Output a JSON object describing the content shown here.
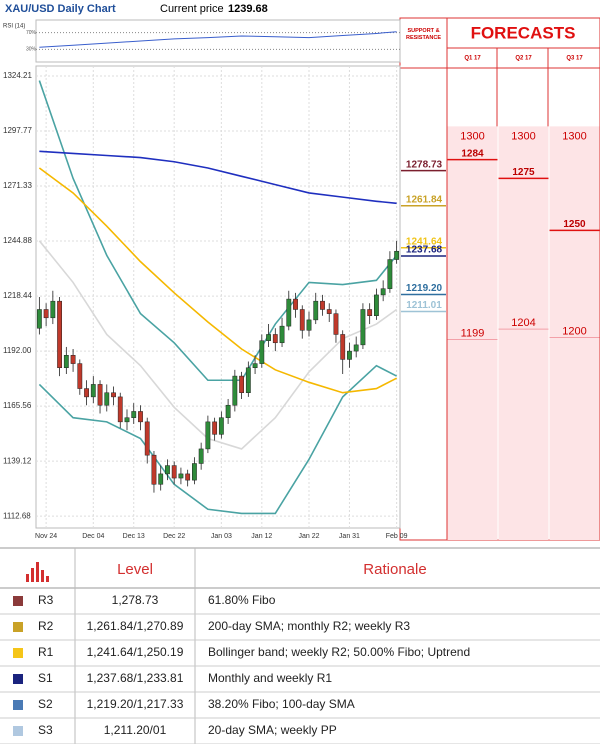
{
  "chart_data": {
    "type": "candlestick",
    "title": "XAU/USD Daily Chart",
    "current_price_label": "Current price",
    "current_price": 1239.68,
    "categories": [
      null,
      "Nov 24",
      null,
      null,
      null,
      null,
      null,
      null,
      "Dec 04",
      null,
      null,
      null,
      null,
      null,
      "Dec 13",
      null,
      null,
      null,
      null,
      null,
      "Dec 22",
      null,
      null,
      null,
      null,
      null,
      null,
      "Jan 03",
      null,
      null,
      null,
      null,
      null,
      "Jan 12",
      null,
      null,
      null,
      null,
      null,
      null,
      "Jan 22",
      null,
      null,
      null,
      null,
      null,
      "Jan 31",
      null,
      null,
      null,
      null,
      null,
      null,
      "Feb 09"
    ],
    "open": [
      1203,
      1212,
      1208,
      1216,
      1184,
      1190,
      1186,
      1174,
      1170,
      1176,
      1166,
      1172,
      1170,
      1158,
      1160,
      1163,
      1158,
      1142,
      1128,
      1133,
      1137,
      1131,
      1133,
      1130,
      1138,
      1145,
      1158,
      1152,
      1160,
      1166,
      1180,
      1172,
      1184,
      1186,
      1197,
      1200,
      1196,
      1204,
      1217,
      1212,
      1202,
      1207,
      1216,
      1212,
      1210,
      1200,
      1188,
      1192,
      1195,
      1212,
      1209,
      1219,
      1222,
      1236
    ],
    "high": [
      1218,
      1215,
      1221,
      1218,
      1194,
      1193,
      1188,
      1178,
      1180,
      1178,
      1176,
      1175,
      1172,
      1164,
      1167,
      1166,
      1160,
      1144,
      1137,
      1140,
      1139,
      1136,
      1135,
      1141,
      1148,
      1161,
      1160,
      1163,
      1169,
      1183,
      1182,
      1187,
      1190,
      1200,
      1205,
      1203,
      1208,
      1221,
      1220,
      1214,
      1211,
      1220,
      1219,
      1215,
      1212,
      1202,
      1196,
      1199,
      1215,
      1215,
      1222,
      1226,
      1240,
      1245
    ],
    "low": [
      1200,
      1204,
      1205,
      1180,
      1181,
      1182,
      1171,
      1166,
      1167,
      1162,
      1163,
      1166,
      1155,
      1154,
      1157,
      1154,
      1138,
      1124,
      1125,
      1130,
      1128,
      1128,
      1127,
      1128,
      1135,
      1143,
      1149,
      1150,
      1157,
      1163,
      1169,
      1170,
      1181,
      1184,
      1194,
      1192,
      1194,
      1202,
      1208,
      1198,
      1199,
      1205,
      1209,
      1206,
      1196,
      1181,
      1184,
      1189,
      1193,
      1205,
      1207,
      1216,
      1220,
      1234
    ],
    "close": [
      1212,
      1208,
      1216,
      1184,
      1190,
      1186,
      1174,
      1170,
      1176,
      1166,
      1172,
      1170,
      1158,
      1160,
      1163,
      1158,
      1142,
      1128,
      1133,
      1137,
      1131,
      1133,
      1130,
      1138,
      1145,
      1158,
      1152,
      1160,
      1166,
      1180,
      1172,
      1184,
      1186,
      1197,
      1200,
      1196,
      1204,
      1217,
      1212,
      1202,
      1207,
      1216,
      1212,
      1210,
      1200,
      1188,
      1192,
      1195,
      1212,
      1209,
      1219,
      1222,
      1236,
      1240
    ],
    "up_color": "#2e8b3a",
    "down_color": "#c0392b",
    "ylim": [
      1107,
      1329
    ],
    "yticks": [
      1324.21,
      1297.77,
      1271.33,
      1244.88,
      1218.44,
      {
        "value": 1192,
        "label": "1192.00"
      },
      1165.56,
      1139.12,
      1112.68
    ],
    "grid": true,
    "line_x": [
      0,
      5,
      10,
      15,
      20,
      25,
      30,
      35,
      40,
      45,
      50,
      53
    ],
    "lines": [
      {
        "color": "#d8d8d8",
        "values": [
          1245,
          1225,
          1200,
          1185,
          1165,
          1150,
          1145,
          1160,
          1182,
          1198,
          1205,
          1212
        ]
      },
      {
        "color": "#4aa3a3",
        "values": [
          1322,
          1275,
          1238,
          1210,
          1196,
          1178,
          1178,
          1205,
          1225,
          1224,
          1226,
          1238
        ]
      },
      {
        "color": "#4aa3a3",
        "values": [
          1176,
          1160,
          1158,
          1150,
          1128,
          1116,
          1114,
          1114,
          1140,
          1170,
          1185,
          1180
        ]
      },
      {
        "color": "#f5b800",
        "values": [
          1280,
          1268,
          1252,
          1235,
          1220,
          1206,
          1193,
          1183,
          1177,
          1172,
          1174,
          1179
        ]
      },
      {
        "color": "#1f2fbf",
        "values": [
          1288,
          1287,
          1286,
          1285,
          1283,
          1280,
          1276,
          1272,
          1268,
          1266,
          1264,
          1263
        ]
      }
    ],
    "rsi": {
      "label": "RSI (14)",
      "ylim": [
        0,
        100
      ],
      "yticks": [
        {
          "value": 70,
          "label": "70%"
        },
        {
          "value": 30,
          "label": "30%"
        }
      ],
      "color": "#3a5fcd",
      "values": [
        35,
        40,
        45,
        50,
        55,
        58,
        62,
        60,
        58,
        63,
        68,
        72
      ]
    },
    "sr_title": "SUPPORT & RESISTANCE",
    "levels": [
      {
        "value": 1278.73,
        "color": "#7b1f2e"
      },
      {
        "value": 1261.84,
        "color": "#c9a227"
      },
      {
        "value": 1241.64,
        "color": "#f0c419"
      },
      {
        "value": 1237.68,
        "color": "#1a237e"
      },
      {
        "value": 1219.2,
        "label": "1219.20",
        "color": "#2f6f9f"
      },
      {
        "value": 1211.01,
        "color": "#9ec3d6"
      }
    ],
    "forecast_title": "FORECASTS",
    "forecasts": [
      {
        "period": "Q1 17",
        "high": 1300,
        "mid": 1284,
        "low": 1199
      },
      {
        "period": "Q2 17",
        "high": 1300,
        "mid": 1275,
        "low": 1204
      },
      {
        "period": "Q3 17",
        "high": 1300,
        "mid": 1250,
        "low": 1200
      }
    ]
  },
  "table": {
    "headers": [
      "Level",
      "Rationale"
    ],
    "rows": [
      {
        "name": "R3",
        "color": "#8b3a3a",
        "level": "1,278.73",
        "rationale": "61.80% Fibo"
      },
      {
        "name": "R2",
        "color": "#c9a227",
        "level": "1,261.84/1,270.89",
        "rationale": "200-day SMA; monthly R2; weekly R3"
      },
      {
        "name": "R1",
        "color": "#f5c518",
        "level": "1,241.64/1,250.19",
        "rationale": "Bollinger band; weekly R2; 50.00% Fibo; Uptrend"
      },
      {
        "name": "S1",
        "color": "#1a237e",
        "level": "1,237.68/1,233.81",
        "rationale": "Monthly and weekly R1"
      },
      {
        "name": "S2",
        "color": "#4a7ab5",
        "level": "1,219.20/1,217.33",
        "rationale": "38.20% Fibo; 100-day SMA"
      },
      {
        "name": "S3",
        "color": "#b0c8e0",
        "level": "1,211.20/01",
        "rationale": "20-day SMA; weekly PP"
      }
    ]
  }
}
